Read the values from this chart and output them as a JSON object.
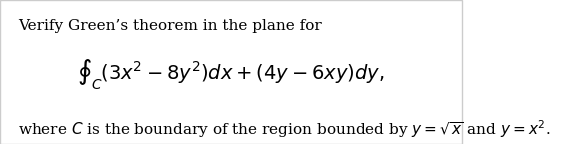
{
  "background_color": "#ffffff",
  "border_color": "#cccccc",
  "line1": "Verify Green’s theorem in the plane for",
  "integral_expr": "$\\oint_C (3x^2 - 8y^2)dx + (4y - 6xy)dy,$",
  "line3": "where $C$ is the boundary of the region bounded by $y = \\sqrt{x}$ and $y = x^2$.",
  "figsize": [
    5.7,
    1.44
  ],
  "dpi": 100,
  "font_size_text": 11,
  "font_size_integral": 14
}
